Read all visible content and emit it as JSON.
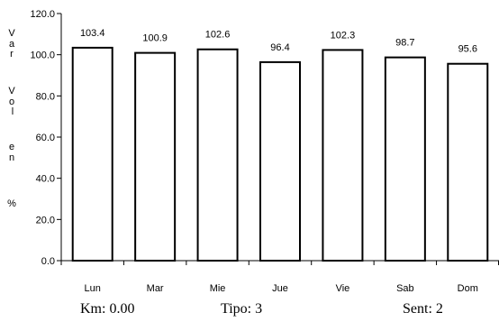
{
  "chart_data": {
    "type": "bar",
    "categories": [
      "Lun",
      "Mar",
      "Mie",
      "Jue",
      "Vie",
      "Sab",
      "Dom"
    ],
    "values": [
      103.4,
      100.9,
      102.6,
      96.4,
      102.3,
      98.7,
      95.6
    ],
    "value_labels": [
      "103.4",
      "100.9",
      "102.6",
      "96.4",
      "102.3",
      "98.7",
      "95.6"
    ],
    "ylabel_letters": [
      "V",
      "a",
      "r",
      "V",
      "o",
      "l",
      "e",
      "n",
      "%"
    ],
    "yticks": [
      "0.0",
      "20.0",
      "40.0",
      "60.0",
      "80.0",
      "100.0",
      "120.0"
    ],
    "ylim": [
      0,
      120
    ],
    "grid": false,
    "legend": "none",
    "bar_fill": "#ffffff",
    "bar_stroke": "#000000"
  },
  "footer": {
    "km": "Km: 0.00",
    "tipo": "Tipo: 3",
    "sent": "Sent: 2"
  }
}
